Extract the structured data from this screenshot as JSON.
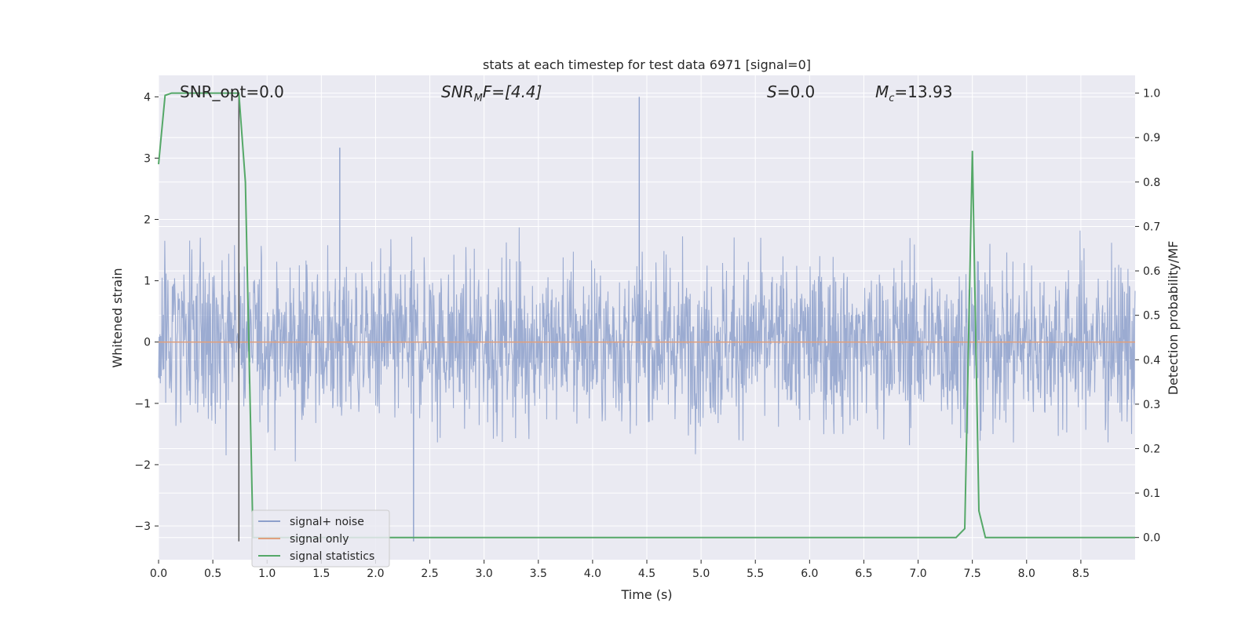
{
  "chart_data": {
    "type": "line",
    "title": "stats at each timestep for test data 6971 [signal=0]",
    "xlabel": "Time (s)",
    "ylabel": "Whitened strain",
    "y2label": "Detection probability/MF",
    "xlim": [
      0.0,
      9.0
    ],
    "ylim": [
      -3.55,
      4.35
    ],
    "y2lim": [
      -0.05,
      1.04
    ],
    "x_ticks": [
      0.0,
      0.5,
      1.0,
      1.5,
      2.0,
      2.5,
      3.0,
      3.5,
      4.0,
      4.5,
      5.0,
      5.5,
      6.0,
      6.5,
      7.0,
      7.5,
      8.0,
      8.5
    ],
    "x_tick_labels": [
      "0.0",
      "0.5",
      "1.0",
      "1.5",
      "2.0",
      "2.5",
      "3.0",
      "3.5",
      "4.0",
      "4.5",
      "5.0",
      "5.5",
      "6.0",
      "6.5",
      "7.0",
      "7.5",
      "8.0",
      "8.5"
    ],
    "y_ticks": [
      -3,
      -2,
      -1,
      0,
      1,
      2,
      3,
      4
    ],
    "y_tick_labels": [
      "−3",
      "−2",
      "−1",
      "0",
      "1",
      "2",
      "3",
      "4"
    ],
    "y2_ticks": [
      0.0,
      0.1,
      0.2,
      0.3,
      0.4,
      0.5,
      0.6,
      0.7,
      0.8,
      0.9,
      1.0
    ],
    "y2_tick_labels": [
      "0.0",
      "0.1",
      "0.2",
      "0.3",
      "0.4",
      "0.5",
      "0.6",
      "0.7",
      "0.8",
      "0.9",
      "1.0"
    ],
    "grid": true,
    "legend_position": "lower-left",
    "annotations": {
      "snr_opt": "SNR_opt=0.0",
      "snr_mf_base": "SNR",
      "snr_mf_sub": "M",
      "snr_mf_rest": "F=[4.4]",
      "s_stat_italic": "S",
      "s_stat_rest": "=0.0",
      "mc_base": "M",
      "mc_sub": "c",
      "mc_rest": "=13.93"
    },
    "marker_line": {
      "x": 0.74,
      "y_range": [
        -3.25,
        4.05
      ]
    },
    "noise_envelope": {
      "approx_range": [
        -3.25,
        4.0
      ],
      "notable_peaks": [
        {
          "x": 4.43,
          "y": 4.0
        },
        {
          "x": 1.67,
          "y": 3.17
        },
        {
          "x": 2.35,
          "y": -3.25
        }
      ]
    },
    "series": [
      {
        "name": "signal+ noise",
        "color": "#8da0cb",
        "kind": "noise"
      },
      {
        "name": "signal only",
        "color": "#e0a07e",
        "kind": "flat",
        "value": 0.0
      },
      {
        "name": "signal statistics",
        "color": "#55a868",
        "axis": "right",
        "x": [
          0.0,
          0.06,
          0.12,
          0.5,
          0.6,
          0.68,
          0.74,
          0.8,
          0.87,
          0.93,
          7.35,
          7.43,
          7.5,
          7.56,
          7.62,
          9.0
        ],
        "y": [
          0.84,
          0.995,
          1.0,
          1.0,
          1.0,
          1.0,
          1.0,
          0.8,
          0.0,
          0.0,
          0.0,
          0.02,
          0.87,
          0.06,
          0.0,
          0.0
        ]
      }
    ]
  }
}
